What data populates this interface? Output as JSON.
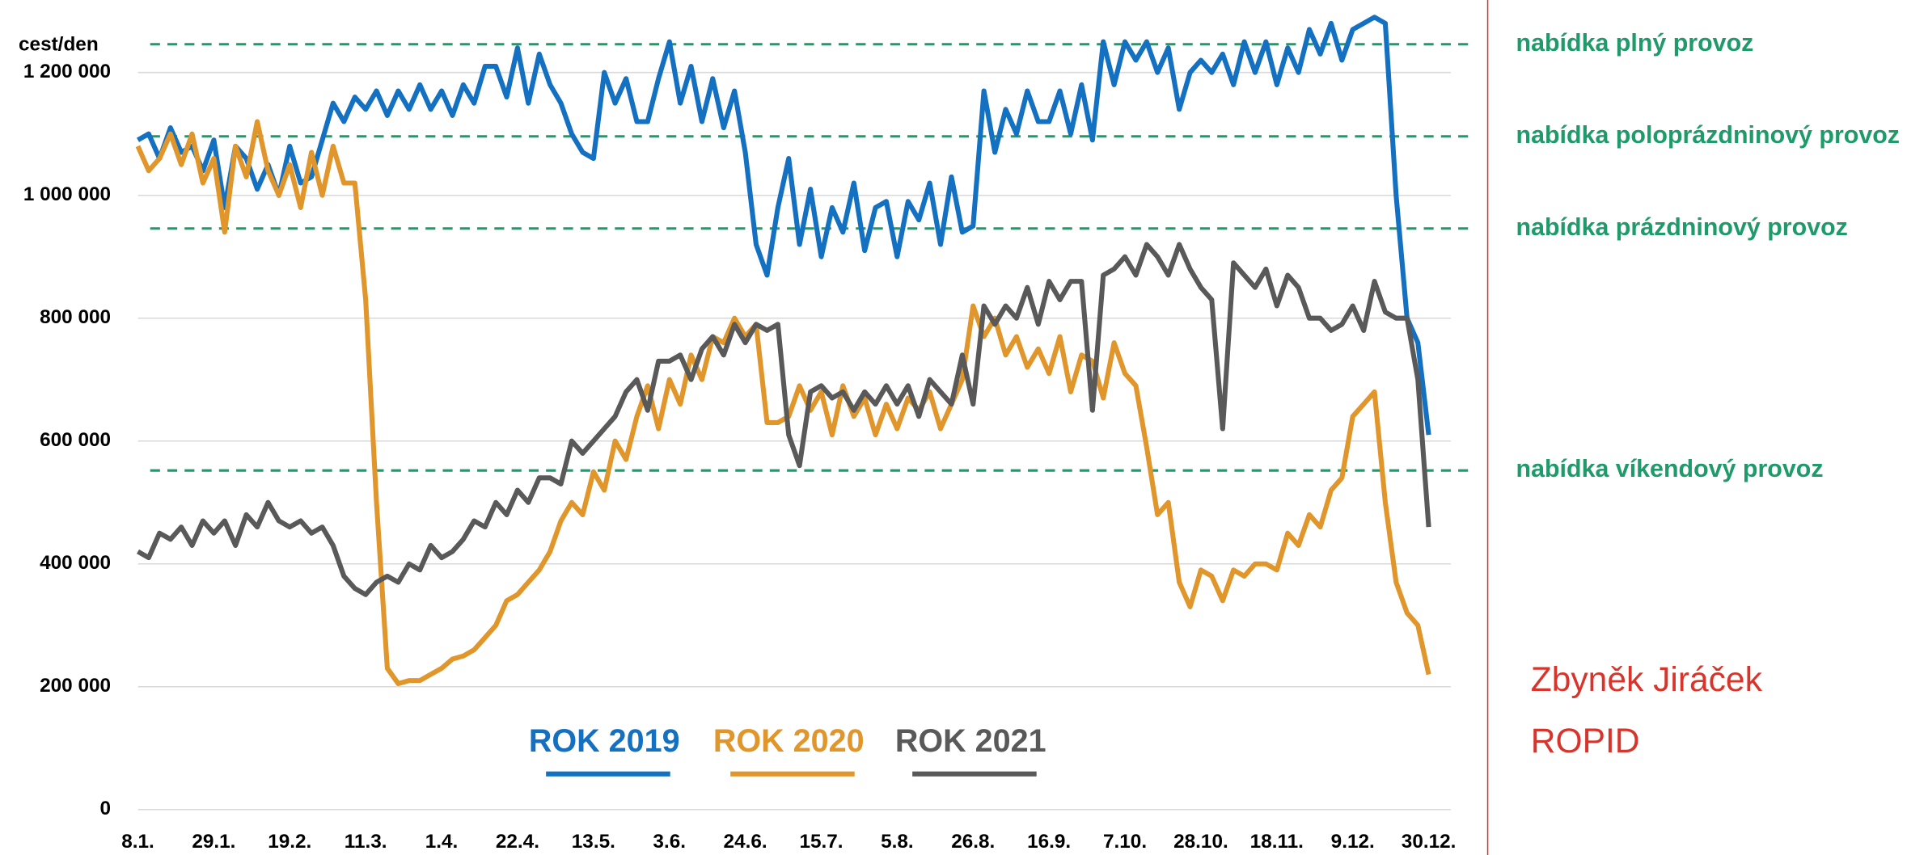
{
  "chart_data": {
    "type": "line",
    "y_axis_label": "cest/den",
    "categories": [
      "8.1.",
      null,
      null,
      null,
      null,
      null,
      null,
      "29.1.",
      null,
      null,
      null,
      null,
      null,
      null,
      "19.2.",
      null,
      null,
      null,
      null,
      null,
      null,
      "11.3.",
      null,
      null,
      null,
      null,
      null,
      null,
      "1.4.",
      null,
      null,
      null,
      null,
      null,
      null,
      "22.4.",
      null,
      null,
      null,
      null,
      null,
      null,
      "13.5.",
      null,
      null,
      null,
      null,
      null,
      null,
      "3.6.",
      null,
      null,
      null,
      null,
      null,
      null,
      "24.6.",
      null,
      null,
      null,
      null,
      null,
      null,
      "15.7.",
      null,
      null,
      null,
      null,
      null,
      null,
      "5.8.",
      null,
      null,
      null,
      null,
      null,
      null,
      "26.8.",
      null,
      null,
      null,
      null,
      null,
      null,
      "16.9.",
      null,
      null,
      null,
      null,
      null,
      null,
      "7.10.",
      null,
      null,
      null,
      null,
      null,
      null,
      "28.10.",
      null,
      null,
      null,
      null,
      null,
      null,
      "18.11.",
      null,
      null,
      null,
      null,
      null,
      null,
      "9.12.",
      null,
      null,
      null,
      null,
      null,
      null,
      "30.12."
    ],
    "series": [
      {
        "name": "ROK 2019",
        "color": "#1470c0",
        "values": [
          1090000,
          1100000,
          1060000,
          1110000,
          1070000,
          1080000,
          1040000,
          1090000,
          980000,
          1080000,
          1060000,
          1010000,
          1050000,
          1000000,
          1080000,
          1020000,
          1030000,
          1090000,
          1150000,
          1120000,
          1160000,
          1140000,
          1170000,
          1130000,
          1170000,
          1140000,
          1180000,
          1140000,
          1170000,
          1130000,
          1180000,
          1150000,
          1210000,
          1210000,
          1160000,
          1240000,
          1150000,
          1230000,
          1180000,
          1150000,
          1100000,
          1070000,
          1060000,
          1200000,
          1150000,
          1190000,
          1120000,
          1120000,
          1190000,
          1250000,
          1150000,
          1210000,
          1120000,
          1190000,
          1110000,
          1170000,
          1070000,
          920000,
          870000,
          980000,
          1060000,
          920000,
          1010000,
          900000,
          980000,
          940000,
          1020000,
          910000,
          980000,
          990000,
          900000,
          990000,
          960000,
          1020000,
          920000,
          1030000,
          940000,
          950000,
          1170000,
          1070000,
          1140000,
          1100000,
          1170000,
          1120000,
          1120000,
          1170000,
          1100000,
          1180000,
          1090000,
          1250000,
          1180000,
          1250000,
          1220000,
          1250000,
          1200000,
          1240000,
          1140000,
          1200000,
          1220000,
          1200000,
          1230000,
          1180000,
          1250000,
          1200000,
          1250000,
          1180000,
          1240000,
          1200000,
          1270000,
          1230000,
          1280000,
          1220000,
          1270000,
          1280000,
          1290000,
          1280000,
          1000000,
          800000,
          760000,
          610000
        ]
      },
      {
        "name": "ROK 2020",
        "color": "#e0962a",
        "values": [
          1080000,
          1040000,
          1060000,
          1100000,
          1050000,
          1100000,
          1020000,
          1060000,
          940000,
          1080000,
          1030000,
          1120000,
          1040000,
          1000000,
          1050000,
          980000,
          1070000,
          1000000,
          1080000,
          1020000,
          1020000,
          830000,
          500000,
          230000,
          205000,
          210000,
          210000,
          220000,
          230000,
          245000,
          250000,
          260000,
          280000,
          300000,
          340000,
          350000,
          370000,
          390000,
          420000,
          470000,
          500000,
          480000,
          550000,
          520000,
          600000,
          570000,
          640000,
          690000,
          620000,
          700000,
          660000,
          740000,
          700000,
          770000,
          760000,
          800000,
          770000,
          790000,
          630000,
          630000,
          640000,
          690000,
          650000,
          680000,
          610000,
          690000,
          640000,
          670000,
          610000,
          660000,
          620000,
          670000,
          650000,
          680000,
          620000,
          660000,
          700000,
          820000,
          770000,
          800000,
          740000,
          770000,
          720000,
          750000,
          710000,
          770000,
          680000,
          740000,
          730000,
          670000,
          760000,
          710000,
          690000,
          590000,
          480000,
          500000,
          370000,
          330000,
          390000,
          380000,
          340000,
          390000,
          380000,
          400000,
          400000,
          390000,
          450000,
          430000,
          480000,
          460000,
          520000,
          540000,
          640000,
          660000,
          680000,
          500000,
          370000,
          320000,
          300000,
          220000
        ]
      },
      {
        "name": "ROK 2021",
        "color": "#595959",
        "values": [
          420000,
          410000,
          450000,
          440000,
          460000,
          430000,
          470000,
          450000,
          470000,
          430000,
          480000,
          460000,
          500000,
          470000,
          460000,
          470000,
          450000,
          460000,
          430000,
          380000,
          360000,
          350000,
          370000,
          380000,
          370000,
          400000,
          390000,
          430000,
          410000,
          420000,
          440000,
          470000,
          460000,
          500000,
          480000,
          520000,
          500000,
          540000,
          540000,
          530000,
          600000,
          580000,
          600000,
          620000,
          640000,
          680000,
          700000,
          650000,
          730000,
          730000,
          740000,
          700000,
          750000,
          770000,
          740000,
          790000,
          760000,
          790000,
          780000,
          790000,
          610000,
          560000,
          680000,
          690000,
          670000,
          680000,
          650000,
          680000,
          660000,
          690000,
          660000,
          690000,
          640000,
          700000,
          680000,
          660000,
          740000,
          660000,
          820000,
          790000,
          820000,
          800000,
          850000,
          790000,
          860000,
          830000,
          860000,
          860000,
          650000,
          870000,
          880000,
          900000,
          870000,
          920000,
          900000,
          870000,
          920000,
          880000,
          850000,
          830000,
          620000,
          890000,
          870000,
          850000,
          880000,
          820000,
          870000,
          850000,
          800000,
          800000,
          780000,
          790000,
          820000,
          780000,
          860000,
          810000,
          800000,
          800000,
          700000,
          460000
        ]
      }
    ],
    "ylim": [
      0,
      1300000
    ],
    "yticks": [
      0,
      {
        "value": 200000,
        "label": "200 000"
      },
      {
        "value": 400000,
        "label": "400 000"
      },
      {
        "value": 600000,
        "label": "600 000"
      },
      {
        "value": 800000,
        "label": "800 000"
      },
      {
        "value": 1000000,
        "label": "1 000 000"
      },
      {
        "value": 1200000,
        "label": "1 200 000"
      }
    ],
    "grid": true,
    "reference_lines": [
      {
        "label": "nabídka plný provoz",
        "value": 1246000
      },
      {
        "label": "nabídka poloprázdninový provoz",
        "value": 1096000
      },
      {
        "label": "nabídka prázdninový provoz",
        "value": 946000
      },
      {
        "label": "nabídka víkendový provoz",
        "value": 552000
      }
    ],
    "reference_color": "#1f9a6a",
    "annotations": [
      "Zbyněk Jiráček",
      "ROPID"
    ],
    "annotation_color": "#d9342b"
  }
}
